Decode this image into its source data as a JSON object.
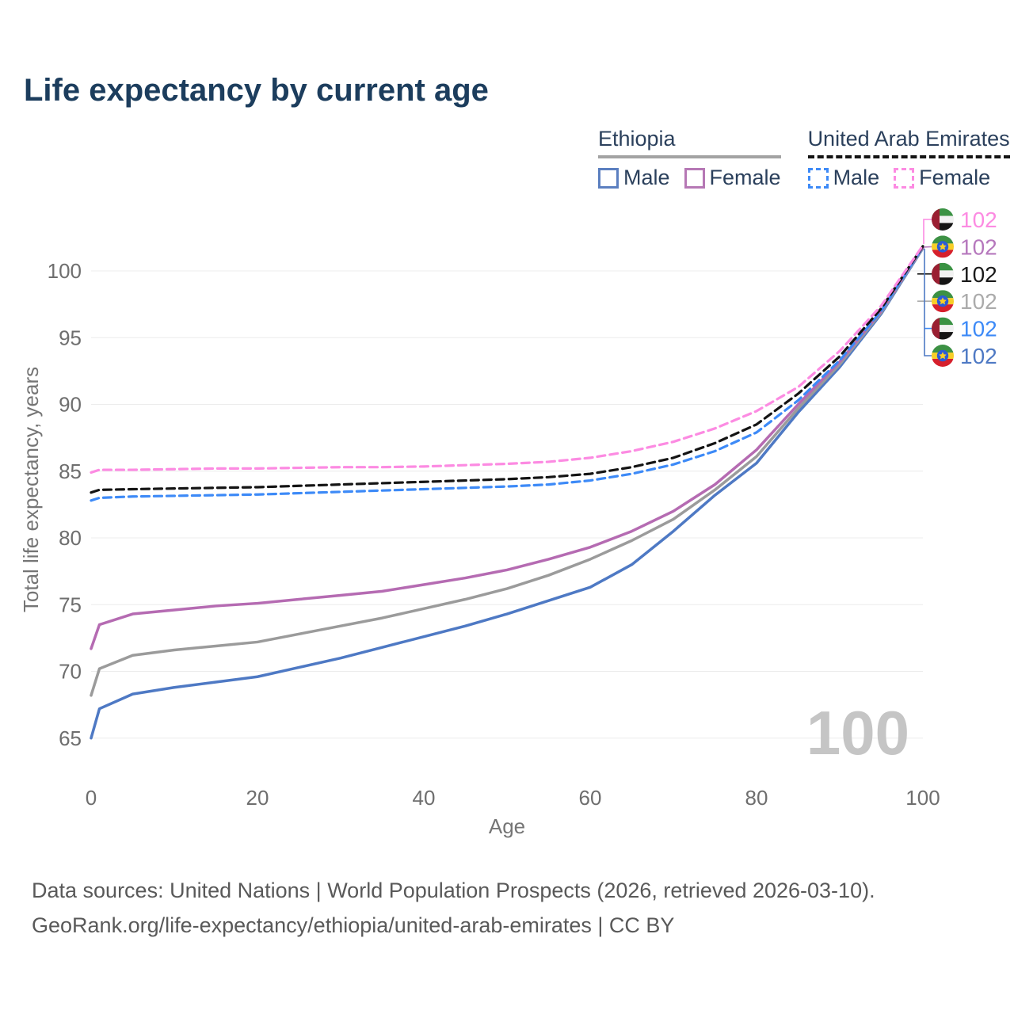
{
  "title": "Life expectancy by current age",
  "watermark": "100",
  "legend": {
    "groups": [
      {
        "title": "Ethiopia",
        "underline": "solid",
        "items": [
          {
            "label": "Male",
            "color": "#5b7fc0",
            "dash": false
          },
          {
            "label": "Female",
            "color": "#b678b5",
            "dash": false
          }
        ]
      },
      {
        "title": "United Arab Emirates",
        "underline": "dashed",
        "items": [
          {
            "label": "Male",
            "color": "#3d8af7",
            "dash": true
          },
          {
            "label": "Female",
            "color": "#fc8be2",
            "dash": true
          }
        ]
      }
    ]
  },
  "chart_data": {
    "type": "line",
    "title": "Life expectancy by current age",
    "xlabel": "Age",
    "ylabel": "Total life expectancy, years",
    "xlim": [
      0,
      100
    ],
    "ylim": [
      63,
      103
    ],
    "xticks": [
      0,
      20,
      40,
      60,
      80,
      100
    ],
    "yticks": [
      65,
      70,
      75,
      80,
      85,
      90,
      95,
      100
    ],
    "grid": "horizontal",
    "legend_position": "top-right",
    "x": [
      0,
      1,
      5,
      10,
      15,
      20,
      25,
      30,
      35,
      40,
      45,
      50,
      55,
      60,
      65,
      70,
      75,
      80,
      85,
      90,
      95,
      100
    ],
    "series": [
      {
        "id": "ethiopia-male",
        "name": "Ethiopia Male",
        "color": "#4e79c4",
        "style": "solid",
        "values": [
          65.0,
          67.2,
          68.3,
          68.8,
          69.2,
          69.6,
          70.3,
          71.0,
          71.8,
          72.6,
          73.4,
          74.3,
          75.3,
          76.3,
          78.0,
          80.5,
          83.2,
          85.6,
          89.4,
          92.8,
          96.8,
          101.7
        ]
      },
      {
        "id": "ethiopia-all",
        "name": "Ethiopia",
        "color": "#9b9b9b",
        "style": "solid",
        "values": [
          68.2,
          70.2,
          71.2,
          71.6,
          71.9,
          72.2,
          72.8,
          73.4,
          74.0,
          74.7,
          75.4,
          76.2,
          77.2,
          78.4,
          79.8,
          81.4,
          83.6,
          86.1,
          89.7,
          93.0,
          96.9,
          101.75
        ]
      },
      {
        "id": "ethiopia-female",
        "name": "Ethiopia Female",
        "color": "#b56bb2",
        "style": "solid",
        "values": [
          71.7,
          73.5,
          74.3,
          74.6,
          74.9,
          75.1,
          75.4,
          75.7,
          76.0,
          76.5,
          77.0,
          77.6,
          78.4,
          79.3,
          80.5,
          82.0,
          84.0,
          86.6,
          90.0,
          93.2,
          97.0,
          101.8
        ]
      },
      {
        "id": "uae-male",
        "name": "United Arab Emirates Male",
        "color": "#3d8af7",
        "style": "dashed",
        "values": [
          82.8,
          83.0,
          83.1,
          83.15,
          83.2,
          83.25,
          83.35,
          83.45,
          83.55,
          83.65,
          83.75,
          83.85,
          84.0,
          84.3,
          84.8,
          85.5,
          86.5,
          87.9,
          90.3,
          93.3,
          97.0,
          101.8
        ]
      },
      {
        "id": "uae-all",
        "name": "United Arab Emirates",
        "color": "#141414",
        "style": "dashed",
        "values": [
          83.4,
          83.6,
          83.65,
          83.7,
          83.75,
          83.8,
          83.9,
          84.0,
          84.1,
          84.2,
          84.3,
          84.4,
          84.55,
          84.8,
          85.3,
          86.0,
          87.1,
          88.5,
          90.8,
          93.6,
          97.2,
          101.85
        ]
      },
      {
        "id": "uae-female",
        "name": "United Arab Emirates Female",
        "color": "#fc8be2",
        "style": "dashed",
        "values": [
          84.9,
          85.1,
          85.1,
          85.15,
          85.2,
          85.2,
          85.25,
          85.3,
          85.3,
          85.35,
          85.45,
          85.55,
          85.7,
          86.0,
          86.5,
          87.2,
          88.2,
          89.5,
          91.3,
          94.0,
          97.4,
          101.9
        ]
      }
    ]
  },
  "right_labels": [
    {
      "flag": "uae",
      "value": "102",
      "color": "#fc8be2",
      "series": "uae-female"
    },
    {
      "flag": "ethiopia",
      "value": "102",
      "color": "#b678bd",
      "series": "ethiopia-female"
    },
    {
      "flag": "uae",
      "value": "102",
      "color": "#1a1a1a",
      "series": "uae-all"
    },
    {
      "flag": "ethiopia",
      "value": "102",
      "color": "#ababab",
      "series": "ethiopia-all"
    },
    {
      "flag": "uae",
      "value": "102",
      "color": "#3d8af7",
      "series": "uae-male"
    },
    {
      "flag": "ethiopia",
      "value": "102",
      "color": "#4e79c4",
      "series": "ethiopia-male"
    }
  ],
  "footer": {
    "line1": "Data sources: United Nations | World Population Prospects (2026, retrieved 2026-03-10).",
    "line2": "GeoRank.org/life-expectancy/ethiopia/united-arab-emirates | CC BY"
  }
}
